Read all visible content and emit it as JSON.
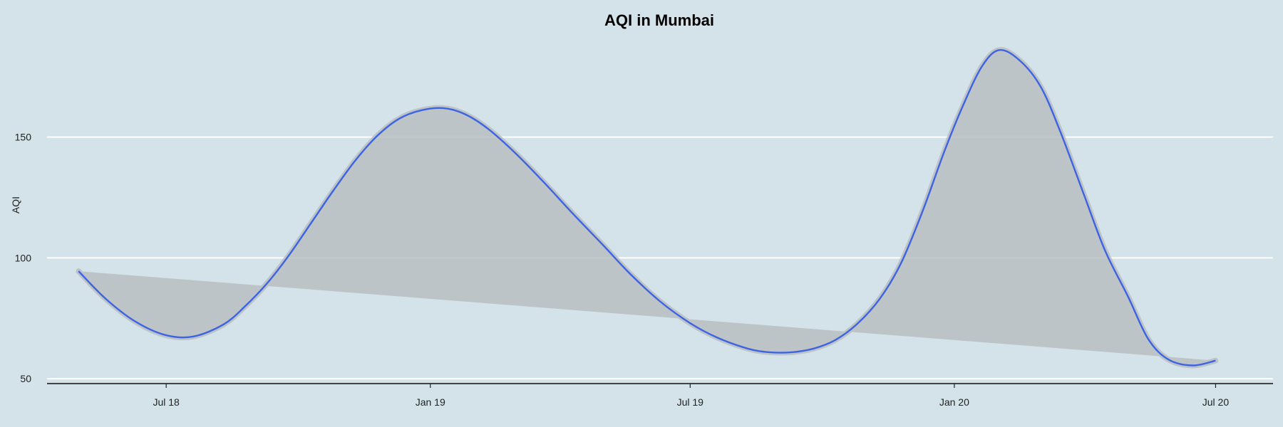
{
  "chart_data": {
    "type": "line",
    "title": "AQI in Mumbai",
    "xlabel": "",
    "ylabel": "AQI",
    "x_ticks": [
      "Jul 18",
      "Jan 19",
      "Jul 19",
      "Jan 20",
      "Jul 20"
    ],
    "y_ticks": [
      50,
      100,
      150
    ],
    "xlim": [
      "2018-04-09",
      "2020-08-10"
    ],
    "ylim": [
      48,
      192
    ],
    "grid": "horizontal",
    "confidence_band": true,
    "colors": {
      "background": "#d4e3ea",
      "line": "#3e63e2",
      "band": "#b9bfc3",
      "grid": "#ffffff"
    },
    "series": [
      {
        "x": [
          "2018-05-01",
          "2018-05-20",
          "2018-06-10",
          "2018-07-01",
          "2018-07-20",
          "2018-08-10",
          "2018-08-25",
          "2018-09-10",
          "2018-09-25",
          "2018-10-10",
          "2018-10-25",
          "2018-11-10",
          "2018-11-25",
          "2018-12-10",
          "2018-12-25",
          "2019-01-10",
          "2019-01-25",
          "2019-02-10",
          "2019-03-01",
          "2019-03-20",
          "2019-04-10",
          "2019-05-01",
          "2019-05-20",
          "2019-06-10",
          "2019-07-01",
          "2019-07-20",
          "2019-08-10",
          "2019-08-25",
          "2019-09-10",
          "2019-09-25",
          "2019-10-10",
          "2019-10-25",
          "2019-11-10",
          "2019-11-25",
          "2019-12-10",
          "2019-12-25",
          "2020-01-07",
          "2020-01-20",
          "2020-02-01",
          "2020-02-15",
          "2020-03-01",
          "2020-03-15",
          "2020-04-01",
          "2020-04-15",
          "2020-05-01",
          "2020-05-15",
          "2020-05-29",
          "2020-06-15",
          "2020-07-01"
        ],
        "values": [
          94.5,
          83,
          73.5,
          68,
          67.5,
          72.5,
          80,
          90,
          101.5,
          114.5,
          127.5,
          140.5,
          150.5,
          157.5,
          161,
          162,
          159.5,
          153.5,
          143.5,
          132,
          118.5,
          105.5,
          93.5,
          82,
          73,
          67,
          62.5,
          61,
          61,
          62.5,
          66,
          72.5,
          83,
          98,
          119.5,
          144,
          163,
          179,
          186,
          182,
          171,
          152,
          125,
          103,
          84,
          66.5,
          58,
          55.5,
          57.5
        ]
      }
    ]
  }
}
